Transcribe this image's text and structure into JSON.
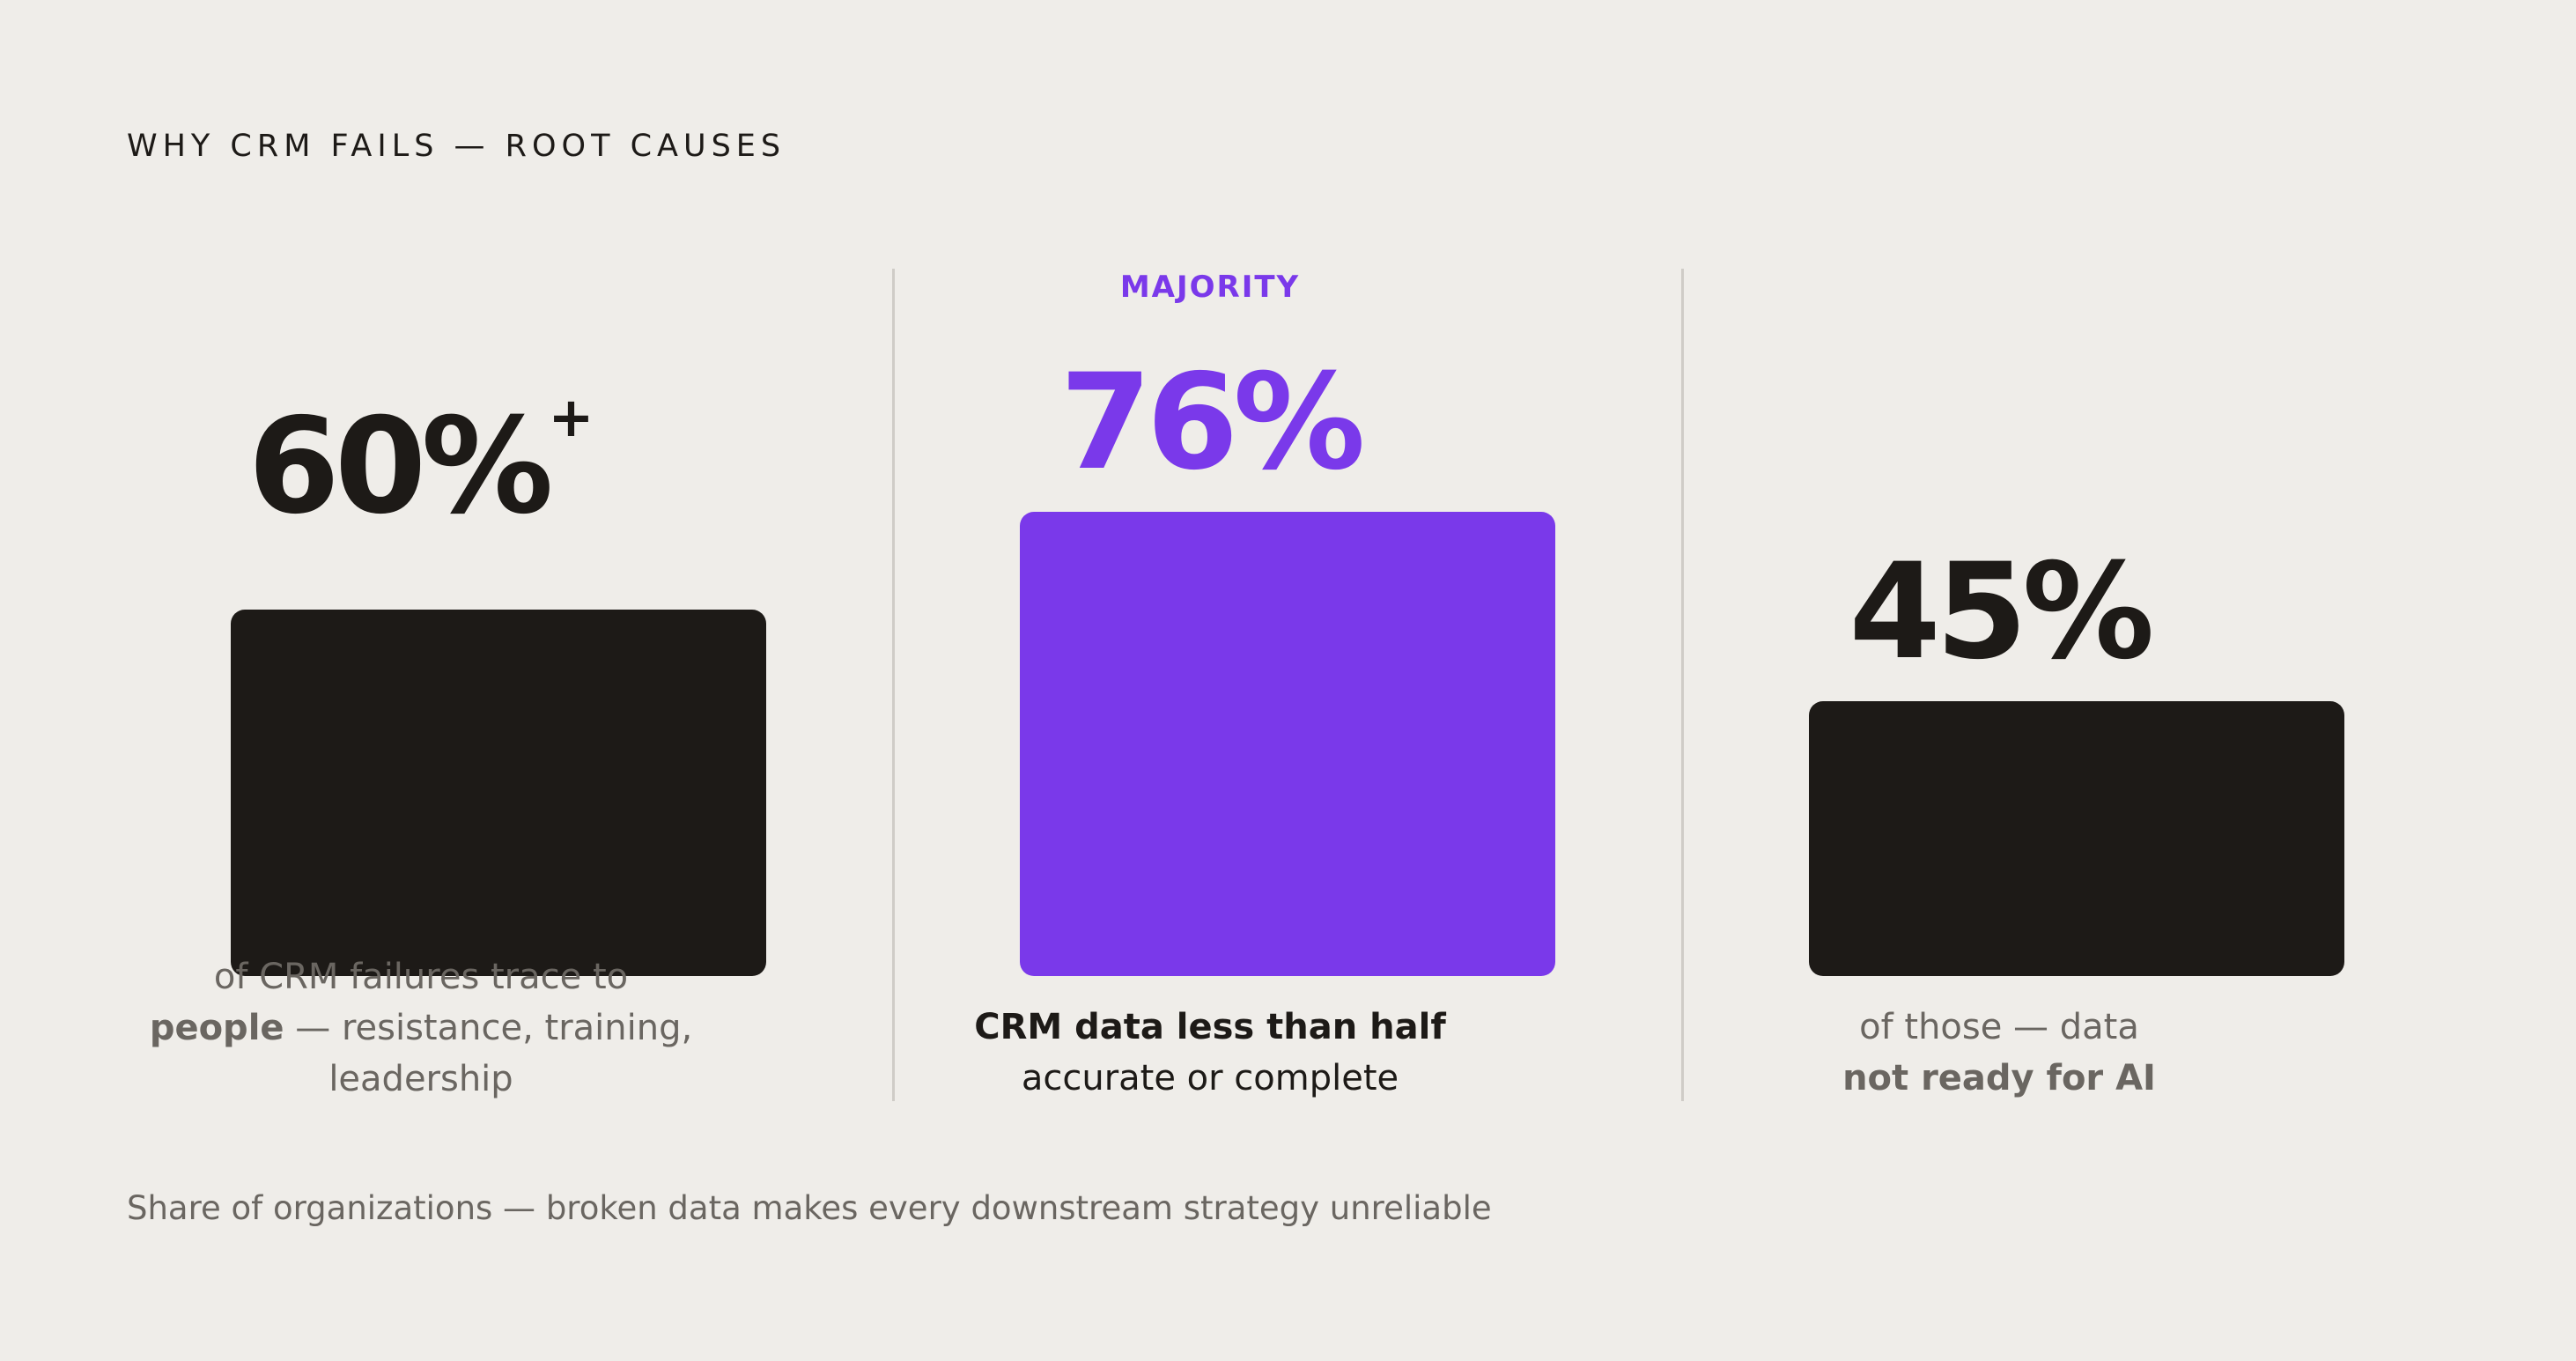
{
  "header": {
    "title": "WHY CRM FAILS — ROOT CAUSES"
  },
  "colors": {
    "background": "#efede9",
    "dark": "#1d1a17",
    "accent": "#7a39ea",
    "muted": "#6a6661",
    "divider": "#cfccc7"
  },
  "chart_data": {
    "type": "bar",
    "title": "WHY CRM FAILS — ROOT CAUSES",
    "categories": [
      "of CRM failures trace to people — resistance, training, leadership",
      "CRM data less than half accurate or complete",
      "of those — data not ready for AI"
    ],
    "values": [
      60,
      76,
      45
    ],
    "value_labels": [
      "60%",
      "76%",
      "45%"
    ],
    "highlight_index": 1,
    "grid": false,
    "legend": "none"
  },
  "columns": [
    {
      "value_label": "60%",
      "value_suffix": "+",
      "kicker": "",
      "caption_line1": "of CRM failures trace to",
      "caption_line2_bold": "people",
      "caption_line2_rest": " — resistance, training,",
      "caption_line3": "leadership"
    },
    {
      "value_label": "76%",
      "kicker": "MAJORITY",
      "caption_line1_bold": "CRM data less than half",
      "caption_line2": "accurate or complete"
    },
    {
      "value_label": "45%",
      "kicker": "",
      "caption_line1": "of those — data",
      "caption_line2_bold": "not ready for AI"
    }
  ],
  "footer": {
    "note": "Share of organizations — broken data makes every downstream strategy unreliable"
  }
}
